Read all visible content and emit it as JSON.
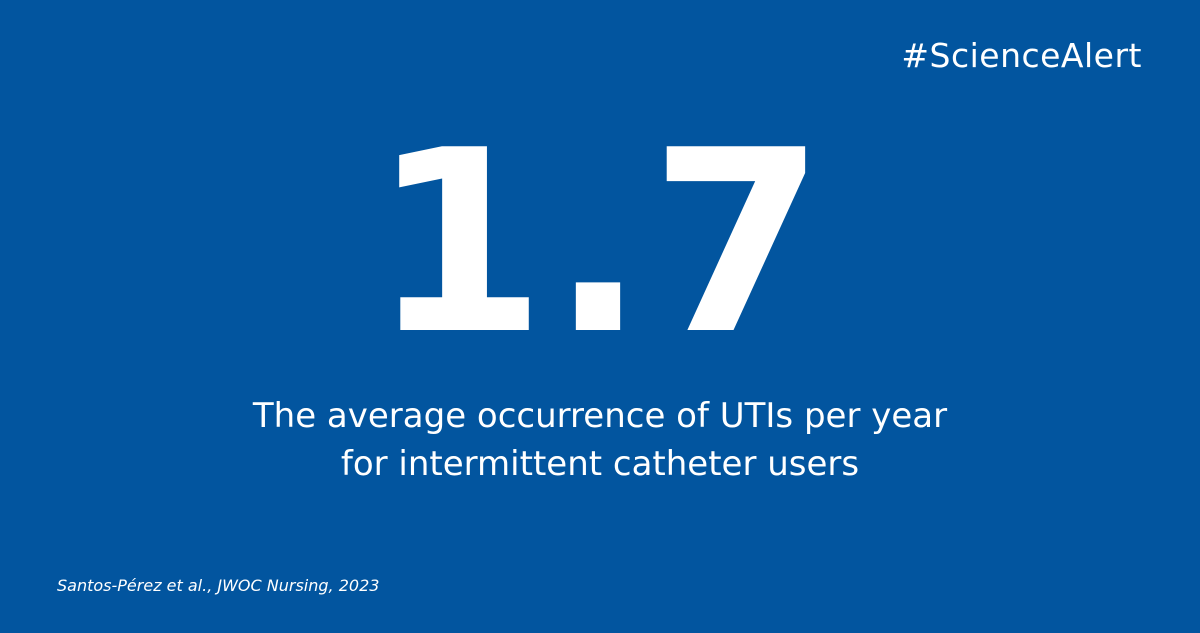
{
  "hashtag": "#ScienceAlert",
  "statistic": "1.7",
  "description": {
    "line1": "The average occurrence of UTIs per year",
    "line2": "for intermittent catheter users"
  },
  "citation": "Santos-Pérez et al., JWOC Nursing, 2023",
  "colors": {
    "background": "#02559f",
    "text": "#ffffff"
  }
}
